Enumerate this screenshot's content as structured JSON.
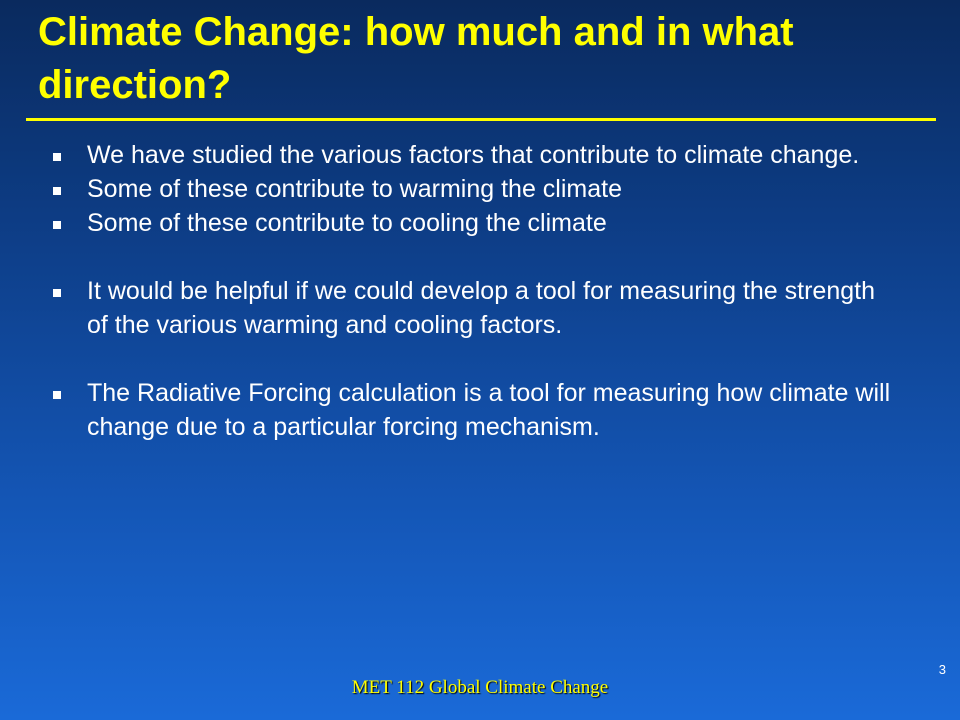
{
  "slide": {
    "title": "Climate Change:  how much and in what direction?",
    "bullets": [
      "We have studied the various factors that contribute to climate change.",
      "Some of these contribute to warming the climate",
      "Some of these contribute to cooling the climate",
      "It would be helpful if we could develop a tool for measuring the strength of the various warming and cooling factors.",
      "The Radiative Forcing calculation is a tool for measuring how climate will change due to a particular forcing mechanism."
    ],
    "footer": "MET 112 Global Climate Change",
    "page_number": "3",
    "colors": {
      "title": "#ffff00",
      "text": "#ffffff",
      "footer": "#ffff00",
      "background_top": "#0a2a5e",
      "background_bottom": "#1a6ad8"
    }
  }
}
